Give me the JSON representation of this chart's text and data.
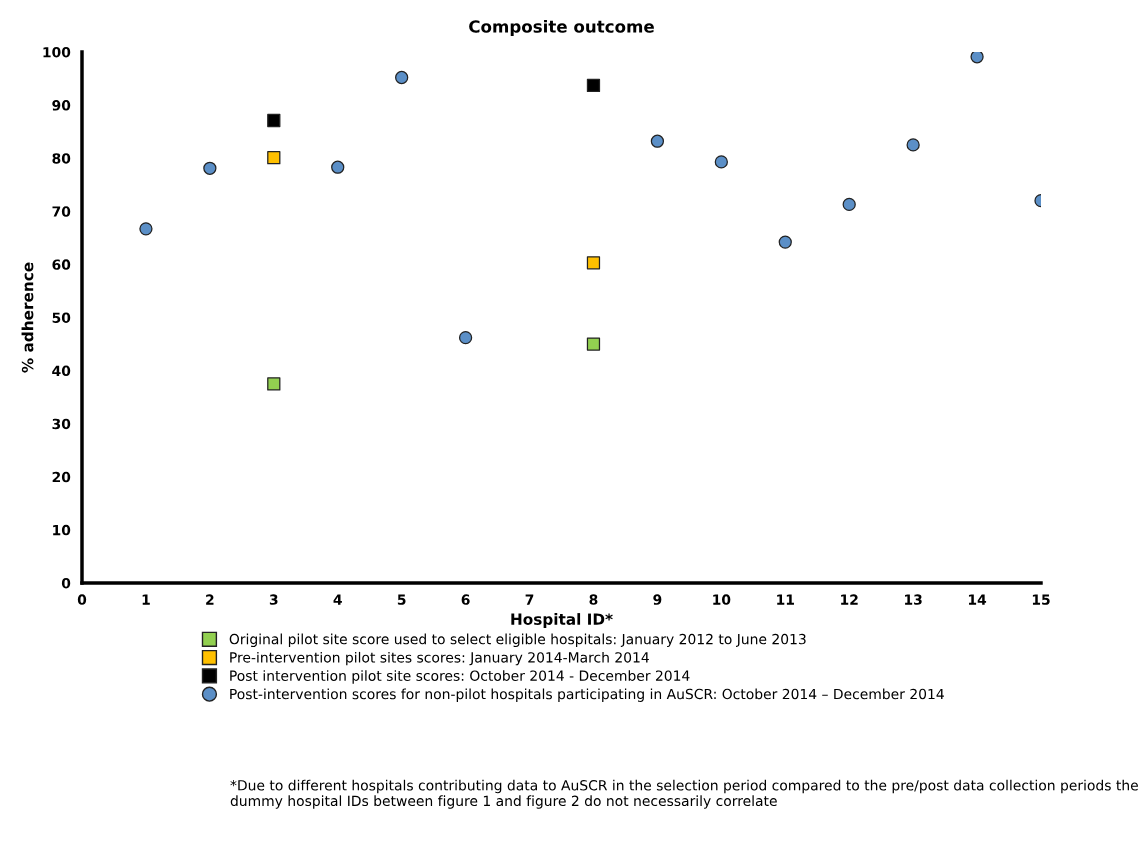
{
  "chart_data": {
    "type": "scatter",
    "title": "Composite outcome",
    "xlabel": "Hospital ID*",
    "ylabel": "% adherence",
    "xlim": [
      0,
      15
    ],
    "xticks": [
      0,
      1,
      2,
      3,
      4,
      5,
      6,
      7,
      8,
      9,
      10,
      11,
      12,
      13,
      14,
      15
    ],
    "ylim": [
      0,
      100
    ],
    "yticks": [
      0,
      10,
      20,
      30,
      40,
      50,
      60,
      70,
      80,
      90,
      100
    ],
    "grid": false,
    "legend": "bottom",
    "series": [
      {
        "name": "Original pilot site score used to select eligible hospitals: January 2012 to June 2013",
        "color": "#92d050",
        "marker": "square",
        "x": [
          3,
          8
        ],
        "values": [
          37.5,
          45.0
        ]
      },
      {
        "name": "Pre-intervention pilot sites scores: January 2014-March 2014",
        "color": "#ffc000",
        "marker": "square",
        "x": [
          3,
          8
        ],
        "values": [
          80.1,
          60.3
        ]
      },
      {
        "name": "Post intervention pilot site scores: October 2014 - December 2014",
        "color": "#000000",
        "marker": "square",
        "x": [
          3,
          8
        ],
        "values": [
          87.1,
          93.7
        ]
      },
      {
        "name": "Post-intervention scores for non-pilot hospitals participating in AuSCR: October 2014 – December 2014",
        "color": "#5b8fc7",
        "marker": "circle",
        "x": [
          1,
          2,
          4,
          5,
          6,
          9,
          10,
          11,
          12,
          13,
          14,
          15
        ],
        "values": [
          66.7,
          78.1,
          78.3,
          95.2,
          46.2,
          83.2,
          79.3,
          64.2,
          71.3,
          82.5,
          99.1,
          72.0
        ]
      }
    ],
    "annotations": [
      "*Due to different hospitals contributing data to AuSCR in the selection period compared to the pre/post data collection periods the dummy hospital IDs between figure 1 and figure 2 do not necessarily correlate"
    ]
  }
}
